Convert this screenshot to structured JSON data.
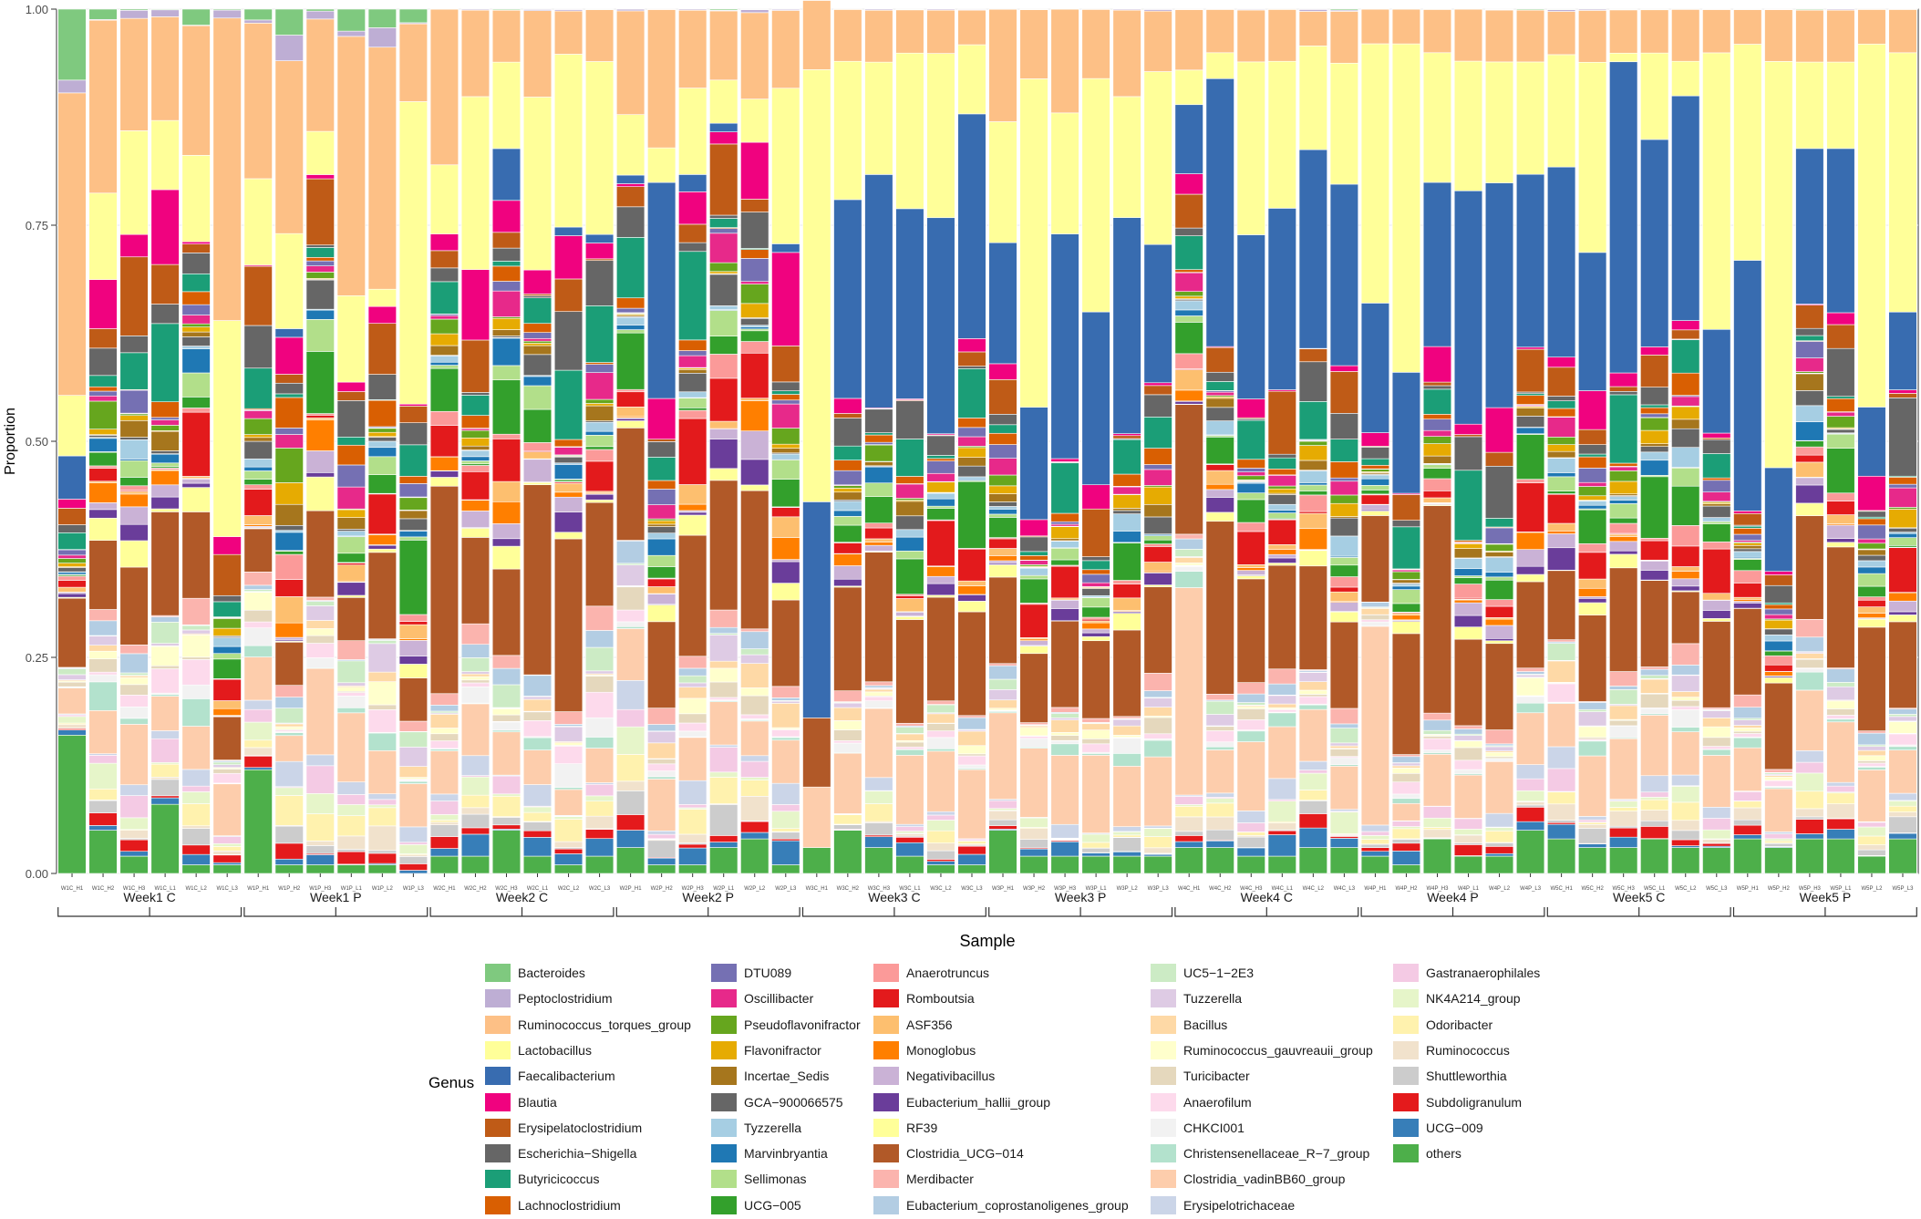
{
  "chart_data": {
    "type": "bar",
    "stacked": true,
    "title": "",
    "xlabel": "Sample",
    "ylabel": "Proportion",
    "ylim": [
      0,
      1
    ],
    "yticks": [
      "0.00",
      "0.25",
      "0.50",
      "0.75",
      "1.00"
    ],
    "grid": true,
    "legend_title": "Genus",
    "legend_position": "bottom",
    "sample_ids": [
      "W1C_H1",
      "W1C_H2",
      "W1C_H3",
      "W1C_L1",
      "W1C_L2",
      "W1C_L3",
      "W1P_H1",
      "W1P_H2",
      "W1P_H3",
      "W1P_L1",
      "W1P_L2",
      "W1P_L3",
      "W2C_H1",
      "W2C_H2",
      "W2C_H3",
      "W2C_L1",
      "W2C_L2",
      "W2C_L3",
      "W2P_H1",
      "W2P_H2",
      "W2P_H3",
      "W2P_L1",
      "W2P_L2",
      "W2P_L3",
      "W3C_H1",
      "W3C_H2",
      "W3C_H3",
      "W3C_L1",
      "W3C_L2",
      "W3C_L3",
      "W3P_H1",
      "W3P_H2",
      "W3P_H3",
      "W3P_L1",
      "W3P_L2",
      "W3P_L3",
      "W4C_H1",
      "W4C_H2",
      "W4C_H3",
      "W4C_L1",
      "W4C_L2",
      "W4C_L3",
      "W4P_H1",
      "W4P_H2",
      "W4P_H3",
      "W4P_L1",
      "W4P_L2",
      "W4P_L3",
      "W5C_H1",
      "W5C_H2",
      "W5C_H3",
      "W5C_L1",
      "W5C_L2",
      "W5C_L3",
      "W5P_H1",
      "W5P_H2",
      "W5P_H3",
      "W5P_L1",
      "W5P_L2",
      "W5P_L3"
    ],
    "groups": [
      "Week1 C",
      "Week1 P",
      "Week2 C",
      "Week2 P",
      "Week3 C",
      "Week3 P",
      "Week4 C",
      "Week4 P",
      "Week5 C",
      "Week5 P"
    ],
    "samples_per_group": 6,
    "genera": [
      {
        "name": "Bacteroides",
        "color": "#7fc97f"
      },
      {
        "name": "Peptoclostridium",
        "color": "#beaed4"
      },
      {
        "name": "Ruminococcus_torques_group",
        "color": "#fdc086"
      },
      {
        "name": "Lactobacillus",
        "color": "#ffff99"
      },
      {
        "name": "Faecalibacterium",
        "color": "#386cb0"
      },
      {
        "name": "Blautia",
        "color": "#f0027f"
      },
      {
        "name": "Erysipelatoclostridium",
        "color": "#bf5b17"
      },
      {
        "name": "Escherichia−Shigella",
        "color": "#666666"
      },
      {
        "name": "Butyricicoccus",
        "color": "#1b9e77"
      },
      {
        "name": "Lachnoclostridium",
        "color": "#d95f02"
      },
      {
        "name": "DTU089",
        "color": "#7570b3"
      },
      {
        "name": "Oscillibacter",
        "color": "#e7298a"
      },
      {
        "name": "Pseudoflavonifractor",
        "color": "#66a61e"
      },
      {
        "name": "Flavonifractor",
        "color": "#e6ab02"
      },
      {
        "name": "Incertae_Sedis",
        "color": "#a6761d"
      },
      {
        "name": "GCA−900066575",
        "color": "#666666"
      },
      {
        "name": "Tyzzerella",
        "color": "#a6cee3"
      },
      {
        "name": "Marvinbryantia",
        "color": "#1f78b4"
      },
      {
        "name": "Sellimonas",
        "color": "#b2df8a"
      },
      {
        "name": "UCG−005",
        "color": "#33a02c"
      },
      {
        "name": "Anaerotruncus",
        "color": "#fb9a99"
      },
      {
        "name": "Romboutsia",
        "color": "#e31a1c"
      },
      {
        "name": "ASF356",
        "color": "#fdbf6f"
      },
      {
        "name": "Monoglobus",
        "color": "#ff7f00"
      },
      {
        "name": "Negativibacillus",
        "color": "#cab2d6"
      },
      {
        "name": "Eubacterium_hallii_group",
        "color": "#6a3d9a"
      },
      {
        "name": "RF39",
        "color": "#ffff99"
      },
      {
        "name": "Clostridia_UCG−014",
        "color": "#b15928"
      },
      {
        "name": "Merdibacter",
        "color": "#fbb4ae"
      },
      {
        "name": "Eubacterium_coprostanoligenes_group",
        "color": "#b3cde3"
      },
      {
        "name": "UC5−1−2E3",
        "color": "#ccebc5"
      },
      {
        "name": "Tuzzerella",
        "color": "#decbe4"
      },
      {
        "name": "Bacillus",
        "color": "#fed9a6"
      },
      {
        "name": "Ruminococcus_gauvreauii_group",
        "color": "#ffffcc"
      },
      {
        "name": "Turicibacter",
        "color": "#e5d8bd"
      },
      {
        "name": "Anaerofilum",
        "color": "#fddaec"
      },
      {
        "name": "CHKCI001",
        "color": "#f2f2f2"
      },
      {
        "name": "Christensenellaceae_R−7_group",
        "color": "#b3e2cd"
      },
      {
        "name": "Clostridia_vadinBB60_group",
        "color": "#fdcdac"
      },
      {
        "name": "Erysipelotrichaceae",
        "color": "#cbd5e8"
      },
      {
        "name": "Gastranaerophilales",
        "color": "#f4cae4"
      },
      {
        "name": "NK4A214_group",
        "color": "#e6f5c9"
      },
      {
        "name": "Odoribacter",
        "color": "#fff2ae"
      },
      {
        "name": "Ruminococcus",
        "color": "#f1e2cc"
      },
      {
        "name": "Shuttleworthia",
        "color": "#cccccc"
      },
      {
        "name": "Subdoligranulum",
        "color": "#e41a1c"
      },
      {
        "name": "UCG−009",
        "color": "#377eb8"
      },
      {
        "name": "others",
        "color": "#4daf4a"
      }
    ],
    "stack_order_bottom_to_top": "others first (bottom), then legend in reverse, Bacteroides on top",
    "values_note": "proportions per sample for key genera, estimated from the figure; remaining proportion spread across minor genera",
    "key_values": {
      "Ruminococcus_torques_group": [
        0.35,
        0.2,
        0.13,
        0.12,
        0.15,
        0.35,
        0.18,
        0.2,
        0.13,
        0.3,
        0.28,
        0.09,
        0.18,
        0.1,
        0.06,
        0.1,
        0.05,
        0.06,
        0.12,
        0.16,
        0.09,
        0.08,
        0.1,
        0.09,
        0.08,
        0.06,
        0.06,
        0.05,
        0.05,
        0.04,
        0.13,
        0.08,
        0.12,
        0.08,
        0.1,
        0.07,
        0.07,
        0.05,
        0.06,
        0.06,
        0.04,
        0.06,
        0.04,
        0.04,
        0.05,
        0.06,
        0.06,
        0.06,
        0.05,
        0.06,
        0.05,
        0.05,
        0.06,
        0.05,
        0.04,
        0.06,
        0.06,
        0.06,
        0.04,
        0.05
      ],
      "Lactobacillus": [
        0.07,
        0.1,
        0.12,
        0.08,
        0.1,
        0.25,
        0.1,
        0.11,
        0.05,
        0.1,
        0.02,
        0.35,
        0.08,
        0.2,
        0.1,
        0.2,
        0.2,
        0.2,
        0.07,
        0.04,
        0.1,
        0.05,
        0.05,
        0.18,
        0.5,
        0.16,
        0.13,
        0.18,
        0.19,
        0.08,
        0.14,
        0.38,
        0.14,
        0.27,
        0.14,
        0.2,
        0.04,
        0.03,
        0.2,
        0.17,
        0.12,
        0.14,
        0.3,
        0.38,
        0.15,
        0.15,
        0.14,
        0.13,
        0.13,
        0.22,
        0.01,
        0.1,
        0.04,
        0.32,
        0.25,
        0.47,
        0.1,
        0.1,
        0.42,
        0.3
      ],
      "Faecalibacterium": [
        0.05,
        0,
        0,
        0,
        0,
        0,
        0,
        0.01,
        0,
        0,
        0,
        0,
        0,
        0,
        0.06,
        0,
        0.01,
        0.01,
        0.01,
        0.25,
        0.02,
        0.01,
        0,
        0.01,
        0.25,
        0.23,
        0.27,
        0.22,
        0.25,
        0.26,
        0.14,
        0.13,
        0.26,
        0.2,
        0.25,
        0.16,
        0.08,
        0.31,
        0.19,
        0.21,
        0.23,
        0.21,
        0.15,
        0.14,
        0.19,
        0.27,
        0.26,
        0.2,
        0.22,
        0.16,
        0.36,
        0.24,
        0.26,
        0.12,
        0.29,
        0.12,
        0.18,
        0.19,
        0.08,
        0.09
      ],
      "Clostridia_UCG−014": [
        0.08,
        0.08,
        0.09,
        0.12,
        0.1,
        0.05,
        0.05,
        0.05,
        0.1,
        0.05,
        0.1,
        0.05,
        0.24,
        0.1,
        0.1,
        0.22,
        0.2,
        0.12,
        0.13,
        0.1,
        0.14,
        0.15,
        0.16,
        0.1,
        0.08,
        0.12,
        0.15,
        0.12,
        0.12,
        0.12,
        0.1,
        0.08,
        0.1,
        0.09,
        0.1,
        0.1,
        0.15,
        0.2,
        0.12,
        0.12,
        0.12,
        0.1,
        0.1,
        0.14,
        0.24,
        0.1,
        0.1,
        0.1,
        0.08,
        0.1,
        0.12,
        0.1,
        0.06,
        0.1,
        0.1,
        0.1,
        0.12,
        0.14,
        0.12,
        0.1
      ],
      "Clostridia_vadinBB60_group": [
        0.03,
        0.05,
        0.07,
        0.04,
        0.05,
        0.06,
        0.05,
        0.03,
        0.1,
        0.08,
        0.05,
        0.05,
        0.05,
        0.06,
        0.05,
        0.04,
        0.03,
        0.04,
        0.06,
        0.06,
        0.05,
        0.05,
        0.04,
        0.05,
        0.07,
        0.07,
        0.08,
        0.08,
        0.07,
        0.08,
        0.1,
        0.08,
        0.08,
        0.09,
        0.07,
        0.08,
        0.24,
        0.05,
        0.08,
        0.06,
        0.06,
        0.05,
        0.23,
        0.02,
        0.06,
        0.05,
        0.06,
        0.06,
        0.05,
        0.07,
        0.07,
        0.07,
        0.05,
        0.06,
        0.05,
        0.05,
        0.07,
        0.07,
        0.06,
        0.05
      ],
      "others": [
        0.16,
        0.05,
        0.02,
        0.08,
        0.01,
        0.01,
        0.12,
        0.01,
        0.01,
        0.01,
        0.01,
        0,
        0.02,
        0.02,
        0.05,
        0.02,
        0.01,
        0.02,
        0.03,
        0.01,
        0.01,
        0.03,
        0.04,
        0.01,
        0.03,
        0.05,
        0.03,
        0.02,
        0.01,
        0.01,
        0.05,
        0.02,
        0.02,
        0.02,
        0.02,
        0.02,
        0.03,
        0.03,
        0.02,
        0.02,
        0.03,
        0.03,
        0.02,
        0.01,
        0.04,
        0.02,
        0.02,
        0.05,
        0.04,
        0.03,
        0.03,
        0.04,
        0.03,
        0.03,
        0.04,
        0.03,
        0.04,
        0.04,
        0.02,
        0.04
      ]
    }
  }
}
